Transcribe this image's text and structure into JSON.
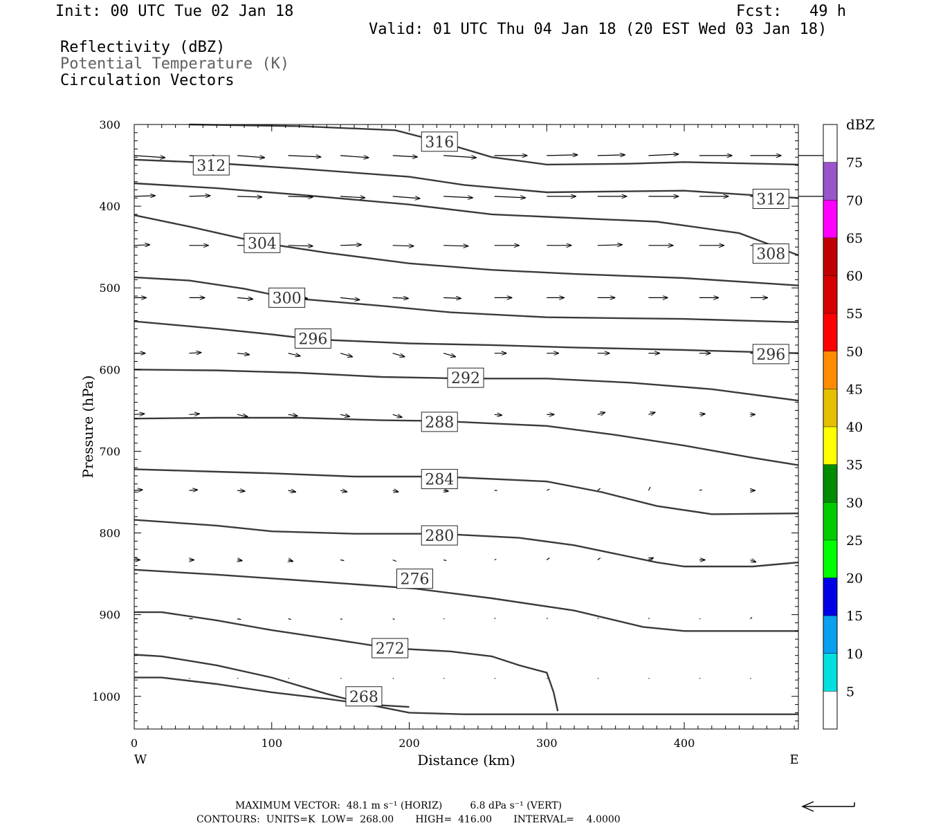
{
  "header": {
    "init": "Init: 00 UTC Tue 02 Jan 18",
    "fcst": "Fcst:   49 h",
    "valid": "Valid: 01 UTC Thu 04 Jan 18 (20 EST Wed 03 Jan 18)",
    "fields": [
      "Reflectivity (dBZ)",
      "Potential Temperature (K)",
      "Circulation Vectors"
    ]
  },
  "footer": {
    "max_vector": "MAXIMUM VECTOR:  48.1 m s⁻¹ (HORIZ)         6.8 dPa s⁻¹ (VERT)",
    "contours": "CONTOURS:  UNITS=K  LOW=  268.00       HIGH=  416.00       INTERVAL=    4.0000"
  },
  "colorbar": {
    "unit": "dBZ",
    "levels": [
      5,
      10,
      15,
      20,
      25,
      30,
      35,
      40,
      45,
      50,
      55,
      60,
      65,
      70,
      75
    ],
    "colors": [
      "#00e0e0",
      "#0aa0f0",
      "#0000e6",
      "#00ff00",
      "#00cc00",
      "#008c00",
      "#ffff00",
      "#e6bf00",
      "#ff8c00",
      "#ff0000",
      "#d60000",
      "#c00000",
      "#ff00ff",
      "#9955c9"
    ]
  },
  "chart_data": {
    "type": "line",
    "xlabel": "Distance (km)",
    "ylabel": "Pressure (hPa)",
    "xlim": [
      0,
      483
    ],
    "ylim": [
      1040,
      300
    ],
    "x_ticks": [
      0,
      100,
      200,
      300,
      400
    ],
    "y_ticks": [
      300,
      400,
      500,
      600,
      700,
      800,
      900,
      1000
    ],
    "x_end_labels": {
      "left": "W",
      "right": "E"
    },
    "series": [
      {
        "name": "268",
        "label_at": [
          167,
          1000
        ],
        "points": [
          [
            0,
            977
          ],
          [
            20,
            977
          ],
          [
            60,
            985
          ],
          [
            100,
            995
          ],
          [
            140,
            1003
          ],
          [
            170,
            1010
          ],
          [
            200,
            1013
          ]
        ]
      },
      {
        "name": "272",
        "label_at": [
          186,
          941
        ],
        "points": [
          [
            0,
            949
          ],
          [
            20,
            951
          ],
          [
            60,
            962
          ],
          [
            100,
            977
          ],
          [
            140,
            997
          ],
          [
            170,
            1010
          ],
          [
            200,
            1020
          ],
          [
            240,
            1022
          ],
          [
            300,
            1022
          ],
          [
            400,
            1022
          ],
          [
            483,
            1022
          ]
        ]
      },
      {
        "name": "272-b",
        "label_at": null,
        "points": [
          [
            186,
            941
          ],
          [
            230,
            945
          ],
          [
            260,
            951
          ],
          [
            280,
            962
          ],
          [
            300,
            971
          ],
          [
            305,
            995
          ],
          [
            308,
            1018
          ]
        ]
      },
      {
        "name": "276",
        "label_at": [
          204,
          856
        ],
        "points": [
          [
            0,
            897
          ],
          [
            20,
            897
          ],
          [
            60,
            907
          ],
          [
            100,
            919
          ],
          [
            140,
            929
          ],
          [
            186,
            941
          ]
        ]
      },
      {
        "name": "276-b",
        "label_at": null,
        "points": [
          [
            0,
            845
          ],
          [
            60,
            851
          ],
          [
            120,
            858
          ],
          [
            204,
            868
          ],
          [
            260,
            880
          ],
          [
            320,
            895
          ],
          [
            370,
            915
          ],
          [
            400,
            920
          ],
          [
            450,
            920
          ],
          [
            483,
            920
          ]
        ]
      },
      {
        "name": "280",
        "label_at": [
          222,
          803
        ],
        "points": [
          [
            0,
            784
          ],
          [
            60,
            791
          ],
          [
            100,
            798
          ],
          [
            160,
            801
          ],
          [
            222,
            801
          ],
          [
            280,
            806
          ],
          [
            320,
            815
          ],
          [
            380,
            836
          ],
          [
            400,
            841
          ],
          [
            450,
            841
          ],
          [
            483,
            836
          ]
        ]
      },
      {
        "name": "284",
        "label_at": [
          222,
          734
        ],
        "points": [
          [
            0,
            722
          ],
          [
            60,
            725
          ],
          [
            100,
            727
          ],
          [
            160,
            731
          ],
          [
            222,
            731
          ],
          [
            300,
            737
          ],
          [
            340,
            750
          ],
          [
            380,
            767
          ],
          [
            420,
            777
          ],
          [
            483,
            776
          ]
        ]
      },
      {
        "name": "288",
        "label_at": [
          222,
          664
        ],
        "points": [
          [
            0,
            660
          ],
          [
            60,
            659
          ],
          [
            120,
            659
          ],
          [
            180,
            662
          ],
          [
            222,
            663
          ],
          [
            300,
            669
          ],
          [
            350,
            680
          ],
          [
            400,
            693
          ],
          [
            450,
            708
          ],
          [
            483,
            717
          ]
        ]
      },
      {
        "name": "292",
        "label_at": [
          241,
          610
        ],
        "points": [
          [
            0,
            600
          ],
          [
            60,
            601
          ],
          [
            120,
            604
          ],
          [
            180,
            609
          ],
          [
            241,
            611
          ],
          [
            300,
            611
          ],
          [
            360,
            616
          ],
          [
            420,
            624
          ],
          [
            483,
            638
          ]
        ]
      },
      {
        "name": "296",
        "label_at": [
          130,
          562
        ],
        "points": [
          [
            0,
            541
          ],
          [
            60,
            550
          ],
          [
            100,
            557
          ],
          [
            130,
            563
          ],
          [
            200,
            568
          ],
          [
            260,
            570
          ],
          [
            320,
            573
          ],
          [
            400,
            576
          ],
          [
            483,
            580
          ]
        ]
      },
      {
        "name": "296-r",
        "label_at": [
          463,
          581
        ],
        "points": []
      },
      {
        "name": "300",
        "label_at": [
          111,
          512
        ],
        "points": [
          [
            0,
            487
          ],
          [
            40,
            491
          ],
          [
            80,
            501
          ],
          [
            111,
            512
          ],
          [
            180,
            522
          ],
          [
            230,
            530
          ],
          [
            300,
            536
          ],
          [
            400,
            538
          ],
          [
            483,
            542
          ]
        ]
      },
      {
        "name": "304",
        "label_at": [
          93,
          445
        ],
        "points": [
          [
            0,
            411
          ],
          [
            40,
            425
          ],
          [
            93,
            445
          ],
          [
            140,
            457
          ],
          [
            200,
            470
          ],
          [
            260,
            478
          ],
          [
            320,
            483
          ],
          [
            400,
            488
          ],
          [
            483,
            497
          ]
        ]
      },
      {
        "name": "308",
        "label_at": [
          463,
          458
        ],
        "points": [
          [
            0,
            372
          ],
          [
            60,
            378
          ],
          [
            120,
            386
          ],
          [
            200,
            398
          ],
          [
            260,
            410
          ],
          [
            300,
            413
          ],
          [
            380,
            419
          ],
          [
            440,
            433
          ],
          [
            483,
            460
          ]
        ]
      },
      {
        "name": "312",
        "label_at": [
          56,
          350
        ],
        "points": [
          [
            0,
            343
          ],
          [
            56,
            347
          ],
          [
            120,
            354
          ],
          [
            200,
            364
          ],
          [
            240,
            374
          ],
          [
            300,
            383
          ],
          [
            400,
            381
          ],
          [
            483,
            390
          ]
        ]
      },
      {
        "name": "312-r",
        "label_at": [
          463,
          391
        ],
        "points": []
      },
      {
        "name": "316",
        "label_at": [
          222,
          321
        ],
        "points": [
          [
            40,
            300
          ],
          [
            120,
            302
          ],
          [
            190,
            307
          ],
          [
            222,
            321
          ],
          [
            260,
            340
          ],
          [
            300,
            349
          ],
          [
            360,
            348
          ],
          [
            400,
            346
          ],
          [
            483,
            349
          ]
        ]
      }
    ],
    "vectors": [
      {
        "p": 338,
        "x": [
          0,
          40,
          75,
          112,
          150,
          188,
          225,
          262,
          300,
          337,
          374,
          411,
          448,
          483
        ],
        "u": [
          34,
          31,
          30,
          36,
          31,
          27,
          36,
          36,
          34,
          30,
          33,
          36,
          34,
          34
        ],
        "v": [
          3,
          2,
          3,
          2,
          3,
          2,
          3,
          0,
          -1,
          -1,
          -2,
          0,
          0,
          0
        ]
      },
      {
        "p": 388,
        "x": [
          0,
          40,
          75,
          112,
          150,
          188,
          225,
          262,
          300,
          337,
          374,
          411,
          448,
          483
        ],
        "u": [
          23,
          23,
          27,
          27,
          27,
          30,
          32,
          34,
          32,
          32,
          33,
          32,
          34,
          34
        ],
        "v": [
          -1,
          -1,
          1,
          1,
          2,
          3,
          2,
          2,
          0,
          0,
          0,
          0,
          0,
          0
        ]
      },
      {
        "p": 448,
        "x": [
          0,
          40,
          75,
          112,
          150,
          188,
          225,
          262,
          300,
          337,
          374,
          411,
          448
        ],
        "u": [
          17,
          21,
          27,
          27,
          23,
          23,
          27,
          27,
          27,
          27,
          27,
          27,
          27
        ],
        "v": [
          -1,
          0,
          0,
          1,
          -1,
          1,
          1,
          0,
          0,
          -1,
          0,
          0,
          0
        ]
      },
      {
        "p": 512,
        "x": [
          0,
          40,
          75,
          112,
          150,
          188,
          225,
          262,
          300,
          337,
          374,
          411,
          448
        ],
        "u": [
          13,
          17,
          17,
          21,
          21,
          17,
          19,
          19,
          19,
          19,
          21,
          21,
          19
        ],
        "v": [
          0,
          0,
          2,
          1,
          3,
          1,
          1,
          0,
          0,
          0,
          0,
          0,
          0
        ]
      },
      {
        "p": 580,
        "x": [
          0,
          40,
          75,
          112,
          150,
          188,
          225,
          262,
          300,
          337,
          374,
          411,
          448
        ],
        "u": [
          12,
          13,
          13,
          13,
          13,
          13,
          13,
          13,
          13,
          13,
          12,
          12,
          12
        ],
        "v": [
          0,
          -1,
          2,
          4,
          5,
          5,
          5,
          0,
          0,
          0,
          0,
          0,
          0
        ]
      },
      {
        "p": 655,
        "x": [
          0,
          40,
          75,
          112,
          150,
          188,
          225,
          262,
          300,
          337,
          374,
          411,
          448
        ],
        "u": [
          11,
          11,
          11,
          10,
          10,
          10,
          10,
          8,
          8,
          8,
          7,
          6,
          5
        ],
        "v": [
          -1,
          -1,
          3,
          2,
          3,
          4,
          3,
          1,
          0,
          -3,
          -3,
          -1,
          0
        ]
      },
      {
        "p": 748,
        "x": [
          0,
          40,
          75,
          112,
          150,
          188,
          225,
          262,
          300,
          337,
          374,
          411,
          448
        ],
        "u": [
          9,
          9,
          8,
          8,
          7,
          6,
          5,
          3,
          3,
          3,
          2,
          3,
          5
        ],
        "v": [
          -1,
          -1,
          1,
          2,
          2,
          2,
          1,
          0,
          -2,
          -3,
          -5,
          -1,
          0
        ]
      },
      {
        "p": 833,
        "x": [
          0,
          40,
          75,
          112,
          150,
          188,
          225,
          262,
          300,
          337,
          374,
          411,
          448
        ],
        "u": [
          6,
          5,
          5,
          5,
          4,
          4,
          3,
          2,
          3,
          3,
          5,
          6,
          6
        ],
        "v": [
          0,
          0,
          1,
          2,
          1,
          2,
          1,
          -1,
          -3,
          -3,
          -3,
          0,
          3
        ]
      },
      {
        "p": 905,
        "x": [
          0,
          40,
          75,
          112,
          150,
          188,
          225,
          262,
          300,
          337,
          374,
          411,
          448
        ],
        "u": [
          4,
          4,
          4,
          3,
          2,
          2,
          1,
          1,
          1,
          1,
          1,
          1,
          2
        ],
        "v": [
          0,
          0,
          1,
          1,
          1,
          1,
          0,
          -1,
          -1,
          -1,
          -1,
          0,
          -2
        ]
      },
      {
        "p": 978,
        "x": [
          40,
          75,
          112,
          150,
          188,
          225,
          262,
          300,
          337,
          374,
          411,
          448,
          483
        ],
        "u": [
          1,
          1,
          1,
          1,
          1,
          1,
          1,
          1,
          1,
          1,
          1,
          1,
          1
        ],
        "v": [
          0,
          0,
          0,
          0,
          0,
          0,
          0,
          0,
          0,
          0,
          0,
          0,
          0
        ]
      }
    ]
  }
}
